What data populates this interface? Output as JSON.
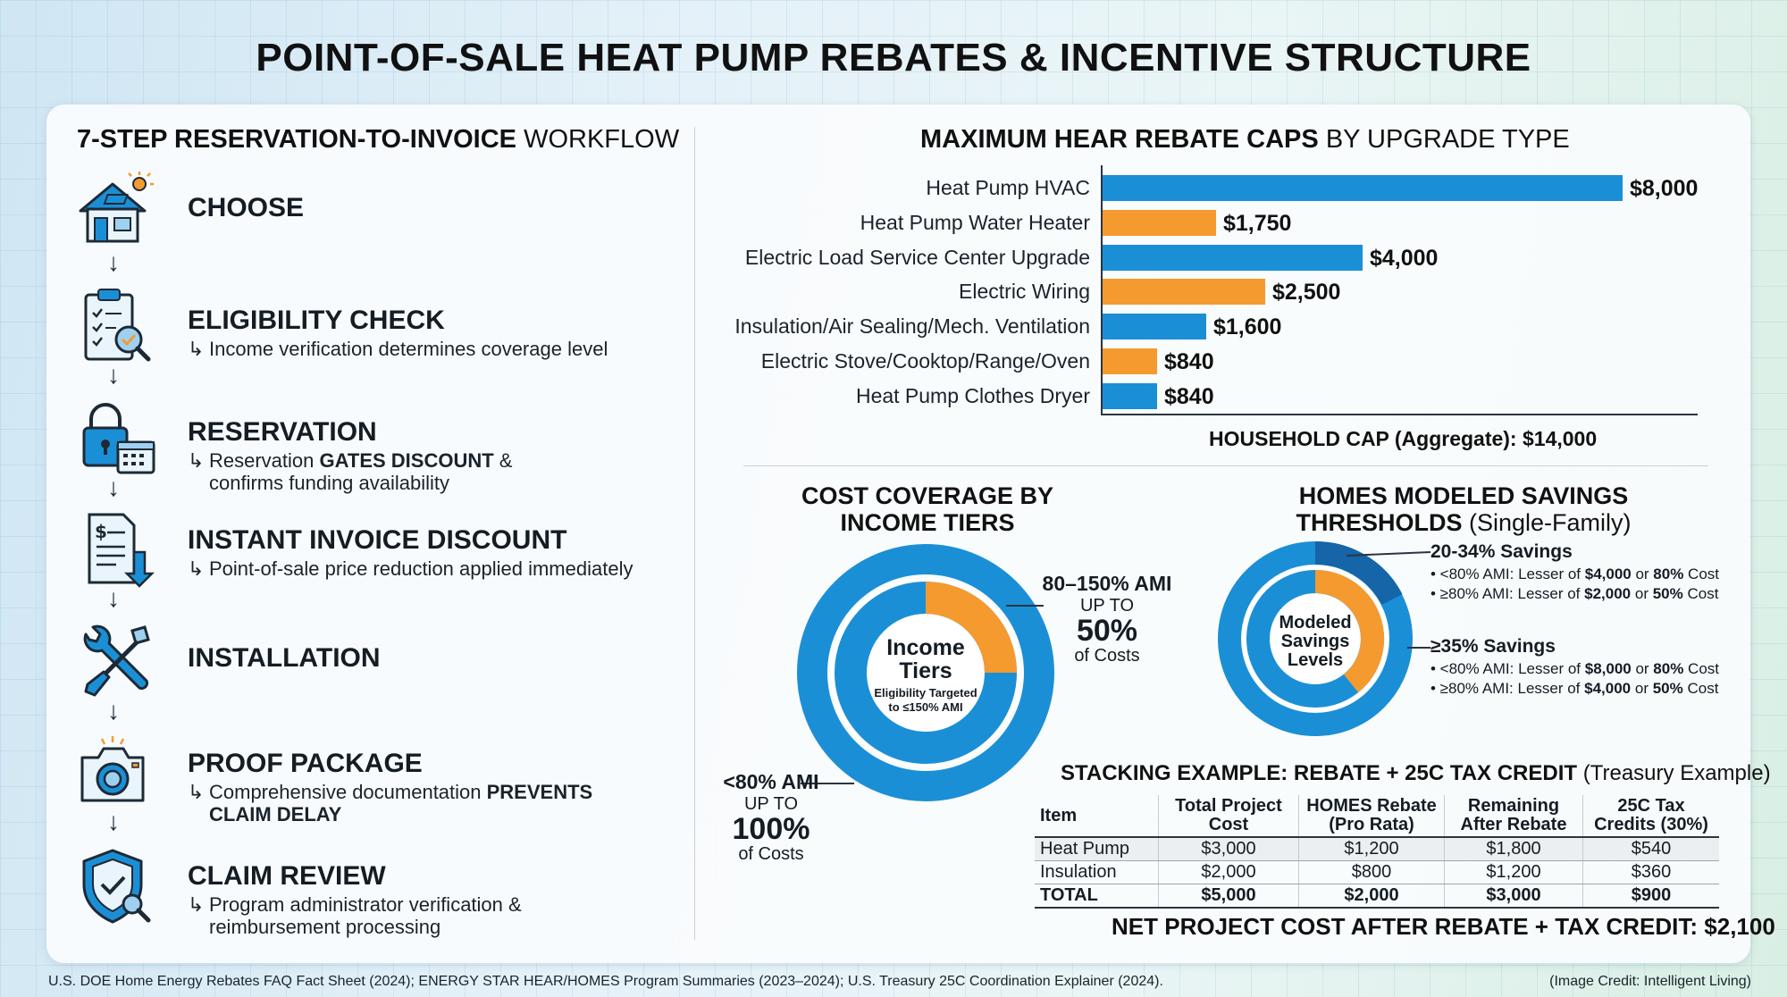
{
  "title": "POINT-OF-SALE HEAT PUMP REBATES & INCENTIVE STRUCTURE",
  "workflow": {
    "title_bold": "7-STEP RESERVATION-TO-INVOICE",
    "title_light": "WORKFLOW",
    "steps": [
      {
        "name": "CHOOSE",
        "icon": "house-sun-icon"
      },
      {
        "name": "ELIGIBILITY CHECK",
        "desc1": "Income verification determines coverage level",
        "icon": "clipboard-check-icon"
      },
      {
        "name": "RESERVATION",
        "desc1_a": "Reservation ",
        "desc1_b": "GATES DISCOUNT",
        "desc1_c": " &",
        "desc2": "confirms funding availability",
        "icon": "lock-calendar-icon"
      },
      {
        "name": "INSTANT INVOICE DISCOUNT",
        "desc1": "Point-of-sale price reduction applied immediately",
        "icon": "invoice-download-icon"
      },
      {
        "name": "INSTALLATION",
        "icon": "wrench-screwdriver-icon"
      },
      {
        "name": "PROOF PACKAGE",
        "desc1_a": "Comprehensive documentation ",
        "desc1_b": "PREVENTS",
        "desc2": "CLAIM DELAY",
        "icon": "camera-icon"
      },
      {
        "name": "CLAIM REVIEW",
        "desc1": "Program administrator verification &",
        "desc2": "reimbursement processing",
        "icon": "shield-check-search-icon"
      }
    ]
  },
  "chart_data": {
    "type": "bar",
    "orientation": "horizontal",
    "title_bold": "MAXIMUM HEAR REBATE CAPS",
    "title_light": "BY UPGRADE TYPE",
    "categories": [
      "Heat Pump HVAC",
      "Heat Pump Water Heater",
      "Electric Load Service Center Upgrade",
      "Electric Wiring",
      "Insulation/Air Sealing/Mech. Ventilation",
      "Electric Stove/Cooktop/Range/Oven",
      "Heat Pump Clothes Dryer"
    ],
    "values": [
      8000,
      1750,
      4000,
      2500,
      1600,
      840,
      840
    ],
    "value_labels": [
      "$8,000",
      "$1,750",
      "$4,000",
      "$2,500",
      "$1,600",
      "$840",
      "$840"
    ],
    "bar_colors": [
      "#1b8fd6",
      "#f59a2f",
      "#1b8fd6",
      "#f59a2f",
      "#1b8fd6",
      "#f59a2f",
      "#1b8fd6"
    ],
    "xlim": [
      0,
      8000
    ],
    "grid": false,
    "footer": "HOUSEHOLD CAP (Aggregate): $14,000"
  },
  "income": {
    "title1": "COST COVERAGE BY",
    "title2": "INCOME TIERS",
    "center1": "Income",
    "center2": "Tiers",
    "center3": "Eligibility Targeted",
    "center4": "to ≤150% AMI",
    "tier_high": {
      "label": "80–150% AMI",
      "up": "UP TO",
      "pct": "50%",
      "of": "of Costs",
      "share": 0.5
    },
    "tier_low": {
      "label": "<80% AMI",
      "up": "UP TO",
      "pct": "100%",
      "of": "of Costs",
      "share": 1.0
    },
    "colors": {
      "outer": "#1b8fd6",
      "inner": "#f59a2f"
    }
  },
  "homes": {
    "title1": "HOMES MODELED SAVINGS",
    "title2_bold": "THRESHOLDS",
    "title2_light": " (Single-Family)",
    "center1": "Modeled",
    "center2": "Savings",
    "center3": "Levels",
    "tier1": {
      "label": "20-34% Savings",
      "l1_a": "• <80% AMI: Lesser of ",
      "l1_b": "$4,000",
      "l1_c": " or ",
      "l1_d": "80%",
      "l1_e": " Cost",
      "l2_a": "• ≥80% AMI: Lesser of ",
      "l2_b": "$2,000",
      "l2_c": " or ",
      "l2_d": "50%",
      "l2_e": " Cost"
    },
    "tier2": {
      "label": "≥35% Savings",
      "l1_a": "• <80% AMI: Lesser of ",
      "l1_b": "$8,000",
      "l1_c": " or ",
      "l1_d": "80%",
      "l1_e": " Cost",
      "l2_a": "• ≥80% AMI: Lesser of ",
      "l2_b": "$4,000",
      "l2_c": " or ",
      "l2_d": "50%",
      "l2_e": " Cost"
    }
  },
  "stacking": {
    "title_bold": "STACKING EXAMPLE: REBATE + 25C TAX CREDIT",
    "title_light": " (Treasury Example)",
    "headers": [
      [
        "Item",
        ""
      ],
      [
        "Total Project",
        "Cost"
      ],
      [
        "HOMES Rebate",
        "(Pro Rata)"
      ],
      [
        "Remaining",
        "After Rebate"
      ],
      [
        "25C Tax",
        "Credits (30%)"
      ]
    ],
    "rows": [
      [
        "Heat Pump",
        "$3,000",
        "$1,200",
        "$1,800",
        "$540"
      ],
      [
        "Insulation",
        "$2,000",
        "$800",
        "$1,200",
        "$360"
      ],
      [
        "TOTAL",
        "$5,000",
        "$2,000",
        "$3,000",
        "$900"
      ]
    ],
    "net": "NET PROJECT COST AFTER REBATE + TAX CREDIT: $2,100"
  },
  "footer": "U.S. DOE Home Energy Rebates FAQ Fact Sheet (2024); ENERGY STAR HEAR/HOMES Program Summaries (2023–2024); U.S. Treasury 25C Coordination Explainer (2024).",
  "credit": "(Image Credit: Intelligent Living)"
}
